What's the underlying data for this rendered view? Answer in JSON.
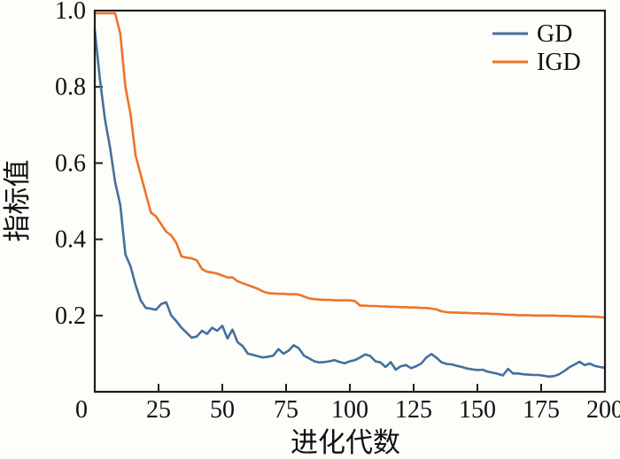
{
  "figure": {
    "background_color": "#fdfdfa",
    "frame_color": "#1c1c1c",
    "text_color": "#111111"
  },
  "chart_data": {
    "type": "line",
    "title": "",
    "xlabel": "进化代数",
    "ylabel": "指标值",
    "xlim": [
      0,
      200
    ],
    "ylim": [
      0,
      1.0
    ],
    "x_ticks": [
      "0",
      "25",
      "50",
      "75",
      "100",
      "125",
      "150",
      "175",
      "200"
    ],
    "y_ticks": [
      "0.2",
      "0.4",
      "0.6",
      "0.8",
      "1.0"
    ],
    "grid": false,
    "legend": {
      "position": "top-right-inside",
      "frame": false
    },
    "x_start": 0,
    "x_step": 2,
    "series": [
      {
        "name": "GD",
        "color": "#44709e",
        "values": [
          0.95,
          0.82,
          0.715,
          0.64,
          0.55,
          0.49,
          0.36,
          0.33,
          0.28,
          0.24,
          0.22,
          0.218,
          0.215,
          0.23,
          0.235,
          0.2,
          0.185,
          0.168,
          0.155,
          0.142,
          0.145,
          0.16,
          0.152,
          0.168,
          0.16,
          0.173,
          0.14,
          0.163,
          0.13,
          0.12,
          0.1,
          0.097,
          0.093,
          0.09,
          0.092,
          0.095,
          0.112,
          0.1,
          0.108,
          0.122,
          0.114,
          0.095,
          0.088,
          0.08,
          0.077,
          0.078,
          0.08,
          0.083,
          0.078,
          0.075,
          0.08,
          0.083,
          0.09,
          0.098,
          0.094,
          0.08,
          0.077,
          0.065,
          0.078,
          0.058,
          0.067,
          0.07,
          0.062,
          0.067,
          0.074,
          0.09,
          0.099,
          0.089,
          0.077,
          0.073,
          0.072,
          0.068,
          0.065,
          0.061,
          0.059,
          0.057,
          0.058,
          0.053,
          0.05,
          0.047,
          0.043,
          0.06,
          0.048,
          0.048,
          0.046,
          0.045,
          0.044,
          0.044,
          0.042,
          0.04,
          0.041,
          0.046,
          0.054,
          0.064,
          0.071,
          0.079,
          0.07,
          0.074,
          0.068,
          0.065,
          0.063
        ]
      },
      {
        "name": "IGD",
        "color": "#ed7428",
        "values": [
          1.0,
          1.0,
          1.0,
          1.0,
          1.0,
          0.94,
          0.8,
          0.73,
          0.62,
          0.57,
          0.52,
          0.47,
          0.46,
          0.44,
          0.42,
          0.41,
          0.39,
          0.355,
          0.352,
          0.35,
          0.345,
          0.322,
          0.315,
          0.313,
          0.31,
          0.305,
          0.3,
          0.3,
          0.29,
          0.285,
          0.28,
          0.275,
          0.27,
          0.263,
          0.259,
          0.258,
          0.257,
          0.257,
          0.256,
          0.256,
          0.255,
          0.25,
          0.245,
          0.243,
          0.242,
          0.241,
          0.241,
          0.24,
          0.24,
          0.24,
          0.24,
          0.238,
          0.226,
          0.226,
          0.225,
          0.225,
          0.224,
          0.224,
          0.223,
          0.223,
          0.222,
          0.222,
          0.221,
          0.221,
          0.22,
          0.22,
          0.218,
          0.216,
          0.211,
          0.209,
          0.208,
          0.208,
          0.207,
          0.207,
          0.206,
          0.206,
          0.205,
          0.205,
          0.204,
          0.204,
          0.203,
          0.202,
          0.202,
          0.201,
          0.201,
          0.201,
          0.2,
          0.2,
          0.2,
          0.2,
          0.2,
          0.199,
          0.199,
          0.199,
          0.198,
          0.198,
          0.198,
          0.197,
          0.197,
          0.196,
          0.195
        ]
      }
    ]
  }
}
